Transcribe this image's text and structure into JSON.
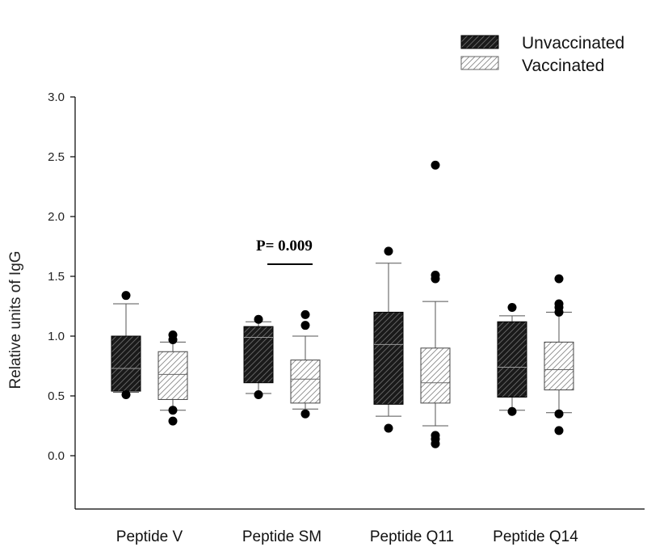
{
  "chart_data": {
    "type": "box",
    "ylabel": "Relative units of IgG",
    "xlabel": "",
    "ylim": [
      -0.45,
      3.0
    ],
    "yticks": [
      "0.0",
      "0.5",
      "1.0",
      "1.5",
      "2.0",
      "2.5",
      "3.0"
    ],
    "categories": [
      "Peptide V",
      "Peptide SM",
      "Peptide Q11",
      "Peptide Q14"
    ],
    "legend": {
      "placement": "top-right",
      "entries": [
        {
          "name": "Unvaccinated",
          "fill": "#1a1a1a",
          "pattern": "dark-hatch"
        },
        {
          "name": "Vaccinated",
          "fill": "#ffffff",
          "pattern": "light-hatch"
        }
      ]
    },
    "series": [
      {
        "name": "Unvaccinated",
        "boxes": [
          {
            "min": 0.53,
            "q1": 0.54,
            "median": 0.73,
            "q3": 1.0,
            "max": 1.27,
            "outliers": [
              1.34,
              0.51
            ]
          },
          {
            "min": 0.52,
            "q1": 0.61,
            "median": 0.99,
            "q3": 1.08,
            "max": 1.12,
            "outliers": [
              1.14,
              0.51
            ]
          },
          {
            "min": 0.33,
            "q1": 0.43,
            "median": 0.93,
            "q3": 1.2,
            "max": 1.61,
            "outliers": [
              1.71,
              0.23
            ]
          },
          {
            "min": 0.38,
            "q1": 0.49,
            "median": 0.74,
            "q3": 1.12,
            "max": 1.17,
            "outliers": [
              1.24,
              0.37
            ]
          }
        ]
      },
      {
        "name": "Vaccinated",
        "boxes": [
          {
            "min": 0.38,
            "q1": 0.47,
            "median": 0.68,
            "q3": 0.87,
            "max": 0.95,
            "outliers": [
              1.01,
              0.97,
              0.38,
              0.29
            ]
          },
          {
            "min": 0.39,
            "q1": 0.44,
            "median": 0.64,
            "q3": 0.8,
            "max": 1.0,
            "outliers": [
              1.18,
              1.09,
              0.35
            ]
          },
          {
            "min": 0.25,
            "q1": 0.44,
            "median": 0.61,
            "q3": 0.9,
            "max": 1.29,
            "outliers": [
              2.43,
              1.51,
              1.48,
              0.17,
              0.14,
              0.1
            ]
          },
          {
            "min": 0.36,
            "q1": 0.55,
            "median": 0.72,
            "q3": 0.95,
            "max": 1.2,
            "outliers": [
              1.48,
              1.27,
              1.24,
              1.2,
              0.35,
              0.21
            ]
          }
        ]
      }
    ],
    "annotations": [
      {
        "text": "P= 0.009",
        "category": "Peptide SM"
      }
    ]
  }
}
